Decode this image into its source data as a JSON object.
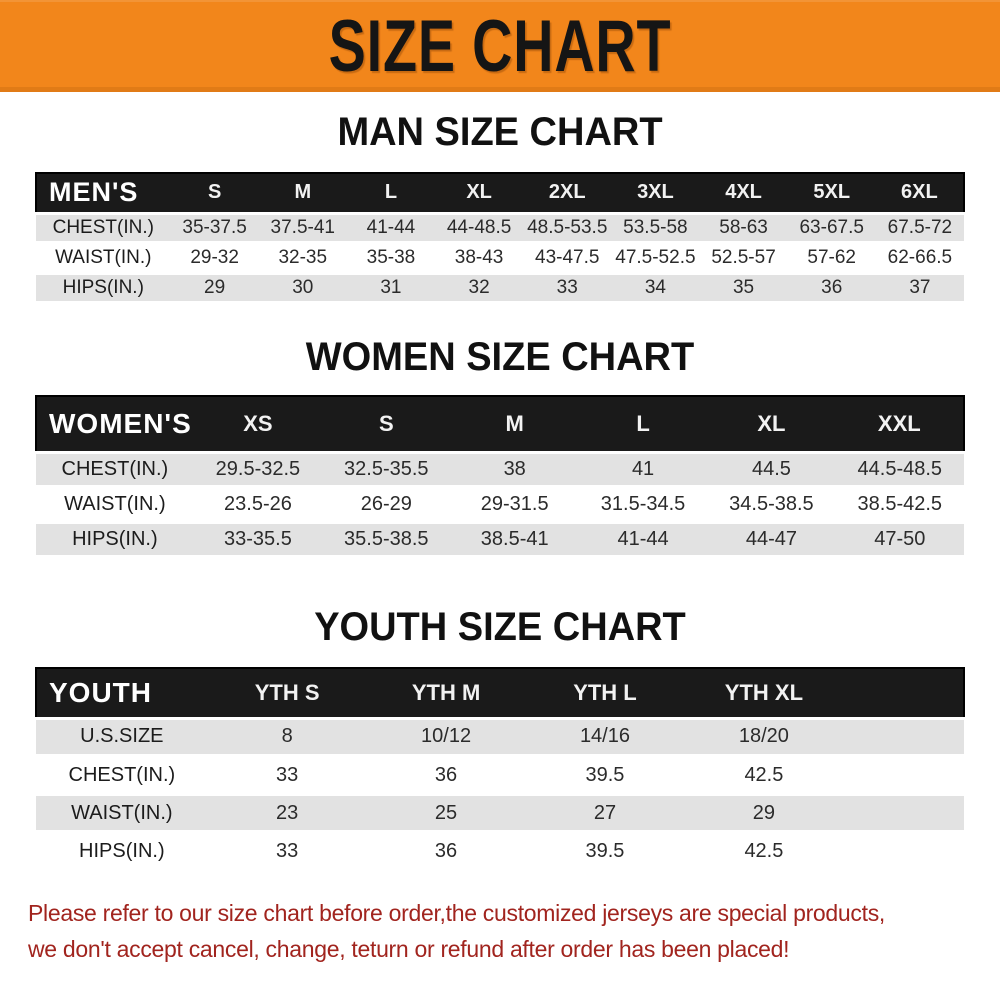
{
  "banner": {
    "title": "SIZE CHART"
  },
  "sections": [
    {
      "title": "MAN SIZE CHART",
      "header_label": "MEN'S",
      "columns": [
        "S",
        "M",
        "L",
        "XL",
        "2XL",
        "3XL",
        "4XL",
        "5XL",
        "6XL"
      ],
      "rows": [
        {
          "label": "CHEST(IN.)",
          "values": [
            "35-37.5",
            "37.5-41",
            "41-44",
            "44-48.5",
            "48.5-53.5",
            "53.5-58",
            "58-63",
            "63-67.5",
            "67.5-72"
          ]
        },
        {
          "label": "WAIST(IN.)",
          "values": [
            "29-32",
            "32-35",
            "35-38",
            "38-43",
            "43-47.5",
            "47.5-52.5",
            "52.5-57",
            "57-62",
            "62-66.5"
          ]
        },
        {
          "label": "HIPS(IN.)",
          "values": [
            "29",
            "30",
            "31",
            "32",
            "33",
            "34",
            "35",
            "36",
            "37"
          ]
        }
      ]
    },
    {
      "title": "WOMEN SIZE CHART",
      "header_label": "WOMEN'S",
      "columns": [
        "XS",
        "S",
        "M",
        "L",
        "XL",
        "XXL"
      ],
      "rows": [
        {
          "label": "CHEST(IN.)",
          "values": [
            "29.5-32.5",
            "32.5-35.5",
            "38",
            "41",
            "44.5",
            "44.5-48.5"
          ]
        },
        {
          "label": "WAIST(IN.)",
          "values": [
            "23.5-26",
            "26-29",
            "29-31.5",
            "31.5-34.5",
            "34.5-38.5",
            "38.5-42.5"
          ]
        },
        {
          "label": "HIPS(IN.)",
          "values": [
            "33-35.5",
            "35.5-38.5",
            "38.5-41",
            "41-44",
            "44-47",
            "47-50"
          ]
        }
      ]
    },
    {
      "title": "YOUTH SIZE CHART",
      "header_label": "YOUTH",
      "columns": [
        "YTH S",
        "YTH M",
        "YTH L",
        "YTH XL"
      ],
      "rows": [
        {
          "label": "U.S.SIZE",
          "values": [
            "8",
            "10/12",
            "14/16",
            "18/20"
          ]
        },
        {
          "label": "CHEST(IN.)",
          "values": [
            "33",
            "36",
            "39.5",
            "42.5"
          ]
        },
        {
          "label": "WAIST(IN.)",
          "values": [
            "23",
            "25",
            "27",
            "29"
          ]
        },
        {
          "label": "HIPS(IN.)",
          "values": [
            "33",
            "36",
            "39.5",
            "42.5"
          ]
        }
      ]
    }
  ],
  "footer": {
    "line1": "Please refer to our size chart before order,the customized jerseys are special products,",
    "line2": "we don't accept cancel, change, teturn or refund after order has been placed!"
  },
  "colors": {
    "banner_orange": "#F2861B",
    "header_black": "#1A1A1A",
    "row_gray": "#E2E2E2",
    "footer_red": "#A1241E"
  }
}
